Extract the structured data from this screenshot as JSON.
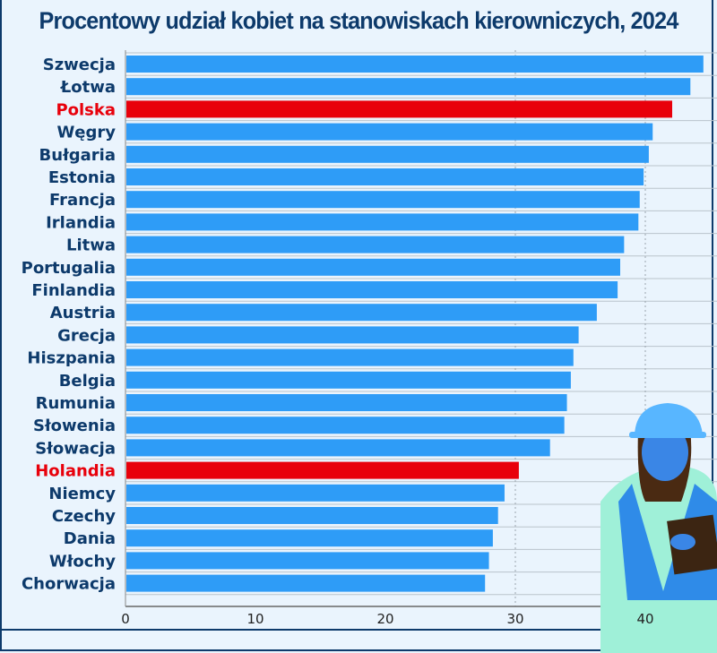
{
  "chart_data": {
    "type": "bar",
    "orientation": "horizontal",
    "title": "Procentowy udział kobiet na stanowiskach kierowniczych, 2024",
    "categories": [
      "Szwecja",
      "Łotwa",
      "Polska",
      "Węgry",
      "Bułgaria",
      "Estonia",
      "Francja",
      "Irlandia",
      "Litwa",
      "Portugalia",
      "Finlandia",
      "Austria",
      "Grecja",
      "Hiszpania",
      "Belgia",
      "Rumunia",
      "Słowenia",
      "Słowacja",
      "Holandia",
      "Niemcy",
      "Czechy",
      "Dania",
      "Włochy",
      "Chorwacja"
    ],
    "values": [
      44.4,
      43.4,
      42.0,
      40.5,
      40.2,
      39.8,
      39.5,
      39.4,
      38.3,
      38.0,
      37.8,
      36.2,
      34.8,
      34.4,
      34.2,
      33.9,
      33.7,
      32.6,
      30.2,
      29.1,
      28.6,
      28.2,
      27.9,
      27.6
    ],
    "highlighted": [
      "Polska",
      "Holandia"
    ],
    "xlim": [
      0,
      45
    ],
    "xticks": [
      0,
      10,
      20,
      30,
      40
    ],
    "grid": "vertical dotted at 30 and 40",
    "colors": {
      "bar": "#2e9cf7",
      "highlight": "#e8000b",
      "label": "#0d3a6b",
      "highlight_label": "#e8000b"
    }
  }
}
